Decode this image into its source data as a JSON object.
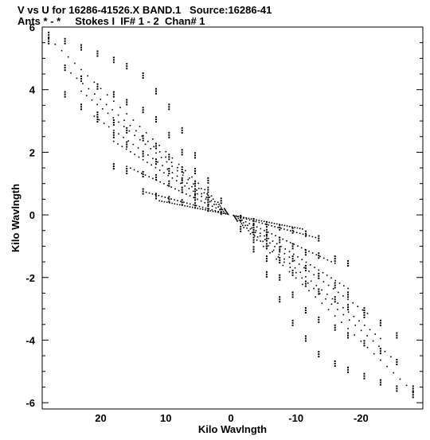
{
  "chart_data": {
    "type": "scatter",
    "title": "V vs U for 16286-41526.X BAND.1   Source:16286-41",
    "subtitle": "Ants * - *     Stokes I  IF# 1 - 2  Chan# 1",
    "xlabel": "Kilo Wavlngth",
    "ylabel": "Kilo Wavlngth",
    "xlim": [
      29,
      -29.5
    ],
    "ylim": [
      -6.2,
      6
    ],
    "xticks": [
      20,
      10,
      0,
      -10,
      -20
    ],
    "xtick_labels": [
      "20",
      "10",
      "0",
      "-10",
      "-20"
    ],
    "yticks": [
      6,
      4,
      2,
      0,
      -2,
      -4,
      -6
    ],
    "ytick_labels": [
      "6",
      "4",
      "2",
      "0",
      "-2",
      "-4",
      "-6"
    ],
    "grid": false,
    "marker_color": "#000000",
    "baselines": [
      {
        "u_max": 28.0,
        "v_max": 5.65
      },
      {
        "u_max": 25.5,
        "v_max": 4.7
      },
      {
        "u_max": 23.0,
        "v_max": 3.95
      },
      {
        "u_max": 21.0,
        "v_max": 3.15
      },
      {
        "u_max": 18.0,
        "v_max": 2.35
      },
      {
        "u_max": 16.0,
        "v_max": 1.55
      },
      {
        "u_max": 13.5,
        "v_max": 0.75
      },
      {
        "u_max": 11.0,
        "v_max": 0.45
      }
    ],
    "series": [
      {
        "points": [
          [
            28.0,
            5.75
          ],
          [
            25.5,
            5.55
          ],
          [
            23.0,
            5.35
          ],
          [
            20.5,
            5.15
          ],
          [
            18.0,
            4.95
          ],
          [
            16.0,
            4.75
          ],
          [
            13.5,
            4.45
          ],
          [
            11.5,
            3.95
          ],
          [
            9.5,
            3.45
          ],
          [
            7.5,
            2.7
          ],
          [
            5.5,
            1.9
          ],
          [
            3.5,
            1.1
          ],
          [
            1.5,
            0.45
          ],
          [
            28.0,
            5.55
          ],
          [
            25.5,
            4.7
          ],
          [
            23.0,
            4.35
          ],
          [
            20.5,
            4.1
          ],
          [
            18.0,
            3.85
          ],
          [
            16.0,
            3.6
          ],
          [
            13.5,
            3.35
          ],
          [
            11.5,
            3.05
          ],
          [
            9.5,
            2.55
          ],
          [
            7.5,
            2.0
          ],
          [
            5.5,
            1.4
          ],
          [
            3.5,
            0.8
          ],
          [
            25.5,
            3.85
          ],
          [
            23.0,
            3.45
          ],
          [
            20.5,
            3.2
          ],
          [
            18.0,
            2.95
          ],
          [
            16.0,
            2.7
          ],
          [
            13.5,
            2.45
          ],
          [
            11.5,
            2.2
          ],
          [
            9.5,
            1.85
          ],
          [
            7.5,
            1.45
          ],
          [
            5.5,
            1.0
          ],
          [
            3.5,
            0.55
          ],
          [
            20.5,
            3.05
          ],
          [
            18.0,
            2.55
          ],
          [
            16.0,
            2.25
          ],
          [
            13.5,
            1.95
          ],
          [
            11.5,
            1.7
          ],
          [
            9.5,
            1.4
          ],
          [
            7.5,
            1.1
          ],
          [
            5.5,
            0.75
          ],
          [
            3.5,
            0.4
          ],
          [
            18.0,
            1.55
          ],
          [
            16.0,
            1.4
          ],
          [
            13.5,
            1.3
          ],
          [
            11.5,
            1.2
          ],
          [
            9.5,
            1.0
          ],
          [
            7.5,
            0.8
          ],
          [
            5.5,
            0.55
          ],
          [
            13.5,
            0.75
          ],
          [
            11.5,
            0.6
          ],
          [
            9.5,
            0.5
          ],
          [
            7.5,
            0.4
          ],
          [
            5.5,
            0.3
          ],
          [
            3.5,
            0.2
          ],
          [
            1.5,
            0.1
          ],
          [
            -1.5,
            -0.1
          ],
          [
            -3.5,
            -0.2
          ],
          [
            -5.5,
            -0.3
          ],
          [
            -7.5,
            -0.4
          ],
          [
            -9.5,
            -0.5
          ],
          [
            -11.5,
            -0.6
          ],
          [
            -13.5,
            -0.75
          ],
          [
            -5.5,
            -0.55
          ],
          [
            -7.5,
            -0.8
          ],
          [
            -9.5,
            -1.0
          ],
          [
            -11.5,
            -1.2
          ],
          [
            -13.5,
            -1.3
          ],
          [
            -16.0,
            -1.4
          ],
          [
            -18.0,
            -1.55
          ],
          [
            -3.5,
            -0.4
          ],
          [
            -5.5,
            -0.75
          ],
          [
            -7.5,
            -1.1
          ],
          [
            -9.5,
            -1.4
          ],
          [
            -11.5,
            -1.7
          ],
          [
            -13.5,
            -1.95
          ],
          [
            -16.0,
            -2.25
          ],
          [
            -18.0,
            -2.55
          ],
          [
            -20.5,
            -3.05
          ],
          [
            -3.5,
            -0.55
          ],
          [
            -5.5,
            -1.0
          ],
          [
            -7.5,
            -1.45
          ],
          [
            -9.5,
            -1.85
          ],
          [
            -11.5,
            -2.2
          ],
          [
            -13.5,
            -2.45
          ],
          [
            -16.0,
            -2.7
          ],
          [
            -18.0,
            -2.95
          ],
          [
            -20.5,
            -3.2
          ],
          [
            -23.0,
            -3.45
          ],
          [
            -25.5,
            -3.85
          ],
          [
            -3.5,
            -0.8
          ],
          [
            -5.5,
            -1.4
          ],
          [
            -7.5,
            -2.0
          ],
          [
            -9.5,
            -2.55
          ],
          [
            -11.5,
            -3.05
          ],
          [
            -13.5,
            -3.35
          ],
          [
            -16.0,
            -3.6
          ],
          [
            -18.0,
            -3.85
          ],
          [
            -20.5,
            -4.1
          ],
          [
            -23.0,
            -4.35
          ],
          [
            -25.5,
            -4.7
          ],
          [
            -28.0,
            -5.55
          ],
          [
            -1.5,
            -0.45
          ],
          [
            -3.5,
            -1.1
          ],
          [
            -5.5,
            -1.9
          ],
          [
            -7.5,
            -2.7
          ],
          [
            -9.5,
            -3.45
          ],
          [
            -11.5,
            -3.95
          ],
          [
            -13.5,
            -4.45
          ],
          [
            -16.0,
            -4.75
          ],
          [
            -18.0,
            -4.95
          ],
          [
            -20.5,
            -5.15
          ],
          [
            -23.0,
            -5.35
          ],
          [
            -25.5,
            -5.55
          ],
          [
            -28.0,
            -5.75
          ]
        ]
      }
    ]
  }
}
